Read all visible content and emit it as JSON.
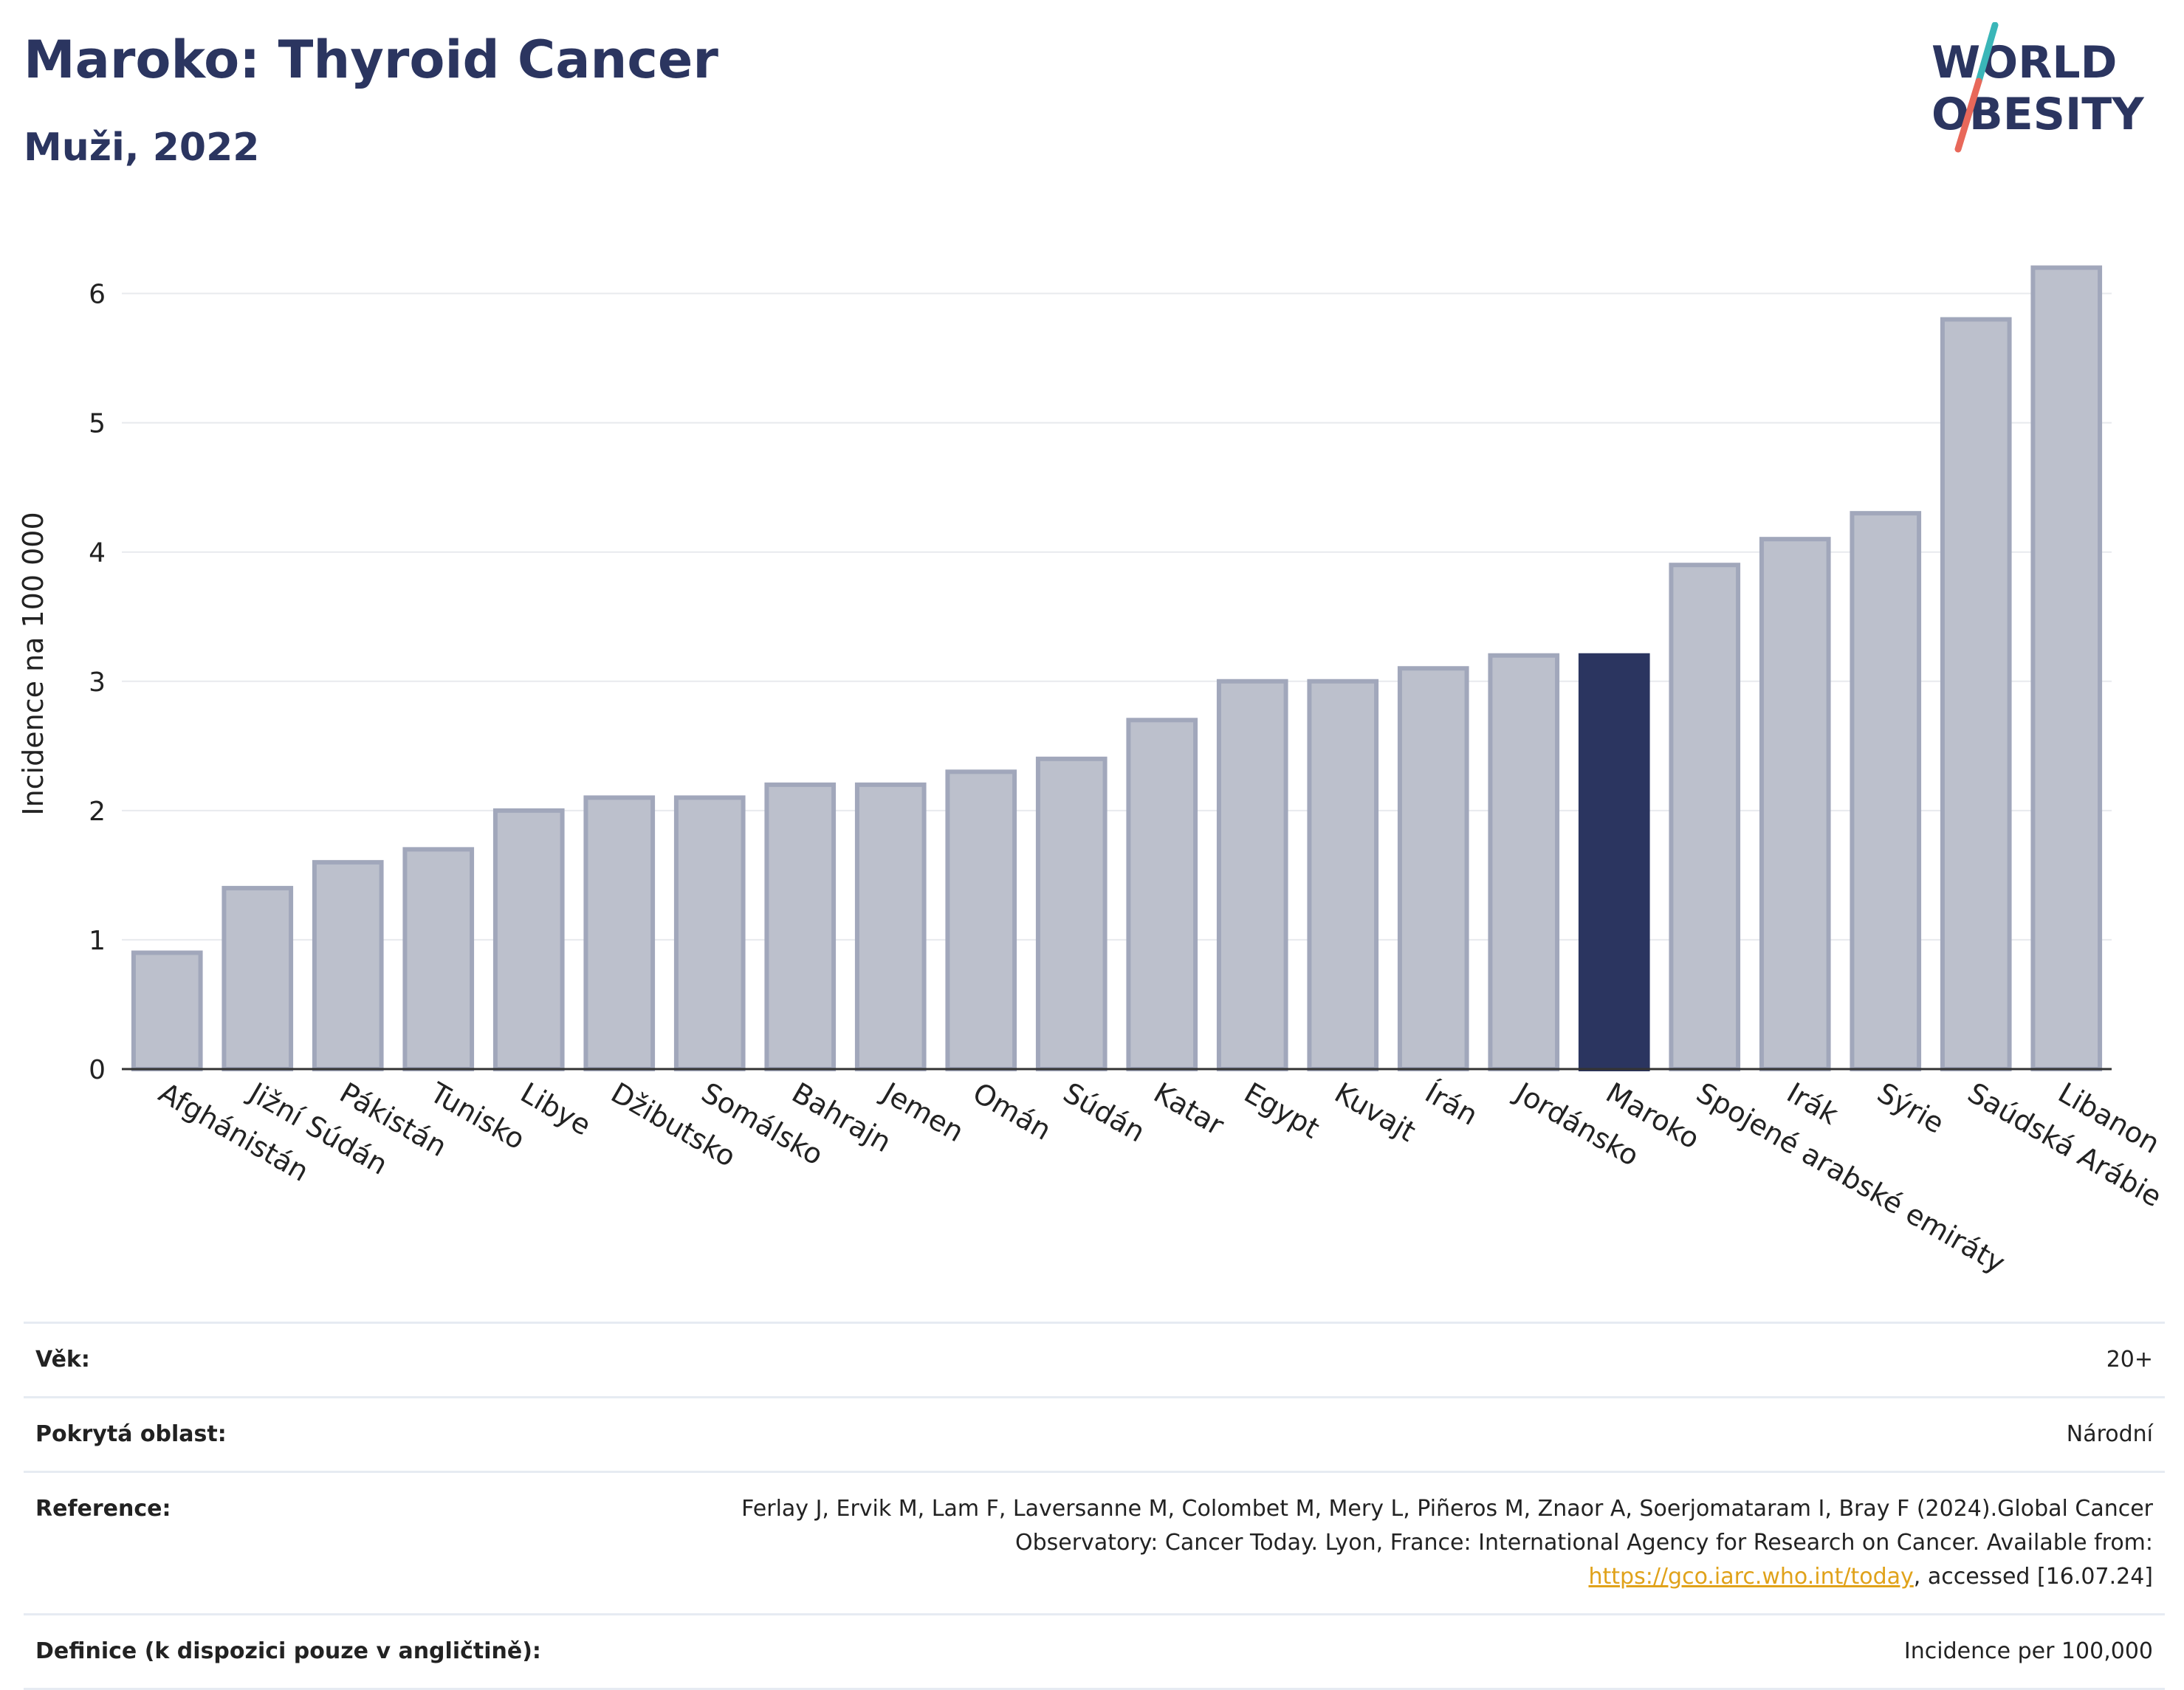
{
  "header": {
    "title": "Maroko: Thyroid Cancer",
    "subtitle": "Muži, 2022",
    "logo_line1": "WORLD",
    "logo_line2": "OBESITY"
  },
  "colors": {
    "bar": "#bcc0cc",
    "bar_border": "#a1a7bb",
    "highlight": "#2b3560",
    "title": "#2b3560",
    "grid": "#e8eaee",
    "link": "#e0a21a",
    "logo_slash_top": "#3ab6b8",
    "logo_slash_bottom": "#e8685a"
  },
  "chart_data": {
    "type": "bar",
    "ylabel": "Incidence na 100 000",
    "xlabel": "",
    "ylim": [
      0,
      6.5
    ],
    "yticks": [
      0,
      1,
      2,
      3,
      4,
      5,
      6
    ],
    "grid": true,
    "highlight": "Maroko",
    "categories": [
      "Afghánistán",
      "Jižní Súdán",
      "Pákistán",
      "Tunisko",
      "Libye",
      "Džibutsko",
      "Somálsko",
      "Bahrajn",
      "Jemen",
      "Omán",
      "Súdán",
      "Katar",
      "Egypt",
      "Kuvajt",
      "Írán",
      "Jordánsko",
      "Maroko",
      "Spojené arabské emiráty",
      "Irák",
      "Sýrie",
      "Saúdská Arábie",
      "Libanon"
    ],
    "values": [
      0.9,
      1.4,
      1.6,
      1.7,
      2.0,
      2.1,
      2.1,
      2.2,
      2.2,
      2.3,
      2.4,
      2.7,
      3.0,
      3.0,
      3.1,
      3.2,
      3.2,
      3.9,
      4.1,
      4.3,
      5.8,
      6.2
    ]
  },
  "info": {
    "age_label": "Věk:",
    "age_value": "20+",
    "coverage_label": "Pokrytá oblast:",
    "coverage_value": "Národní",
    "reference_label": "Reference:",
    "reference_text": "Ferlay J, Ervik M, Lam F, Laversanne M, Colombet M, Mery L, Piñeros M, Znaor A, Soerjomataram I, Bray F (2024).Global Cancer Observatory: Cancer Today. Lyon, France: International Agency for Research on Cancer. Available from: ",
    "reference_link": "https://gco.iarc.who.int/today",
    "reference_suffix": ", accessed [16.07.24]",
    "definition_label": "Definice (k dispozici pouze v angličtině):",
    "definition_value": "Incidence per 100,000"
  }
}
